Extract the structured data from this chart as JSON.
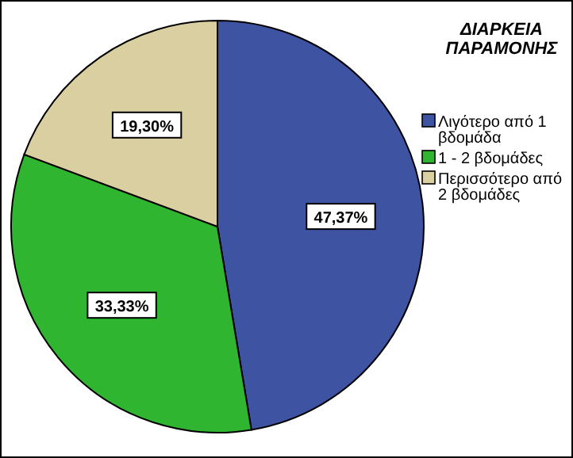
{
  "chart_data": {
    "type": "pie",
    "legend_title": "ΔΙΑΡΚΕΙΑ ΠΑΡΑΜΟΝΗΣ",
    "legend": "top right",
    "categories": [
      "Λιγότερο από 1 βδομάδα",
      "1 - 2 βδομάδες",
      "Περισσότερο από 2 βδομάδες"
    ],
    "values": [
      47.37,
      33.33,
      19.3
    ],
    "colors": [
      "#3e54a3",
      "#2fb52f",
      "#d9cfa0"
    ],
    "value_labels": [
      "47,37%",
      "33,33%",
      "19,30%"
    ]
  }
}
